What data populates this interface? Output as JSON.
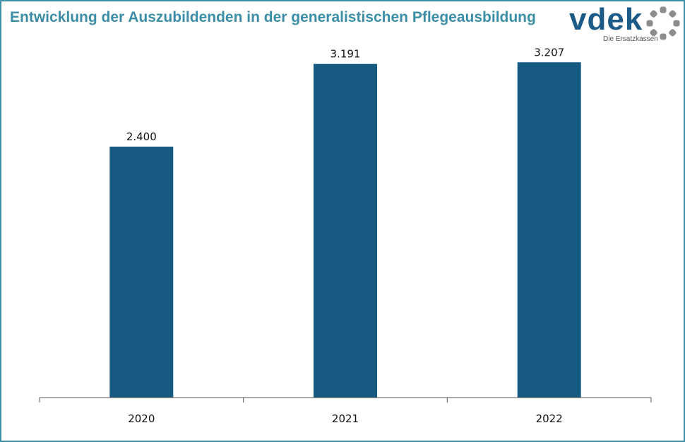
{
  "header": {
    "title": "Entwicklung der Auszubildenden in der generalistischen Pflegeausbildung"
  },
  "logo": {
    "word": "vdek",
    "tagline": "Die Ersatzkassen"
  },
  "colors": {
    "title": "#3c8ea7",
    "bar": "#165a82",
    "frame": "#3f8fa6",
    "logo_ring": "#8c8c8c"
  },
  "chart_data": {
    "type": "bar",
    "title": "Entwicklung der Auszubildenden in der generalistischen Pflegeausbildung",
    "categories": [
      "2020",
      "2021",
      "2022"
    ],
    "values": [
      2400,
      3191,
      3207
    ],
    "value_labels": [
      "2.400",
      "3.191",
      "3.207"
    ],
    "xlabel": "",
    "ylabel": "",
    "ylim": [
      0,
      3600
    ],
    "grid": false,
    "legend": "none"
  }
}
